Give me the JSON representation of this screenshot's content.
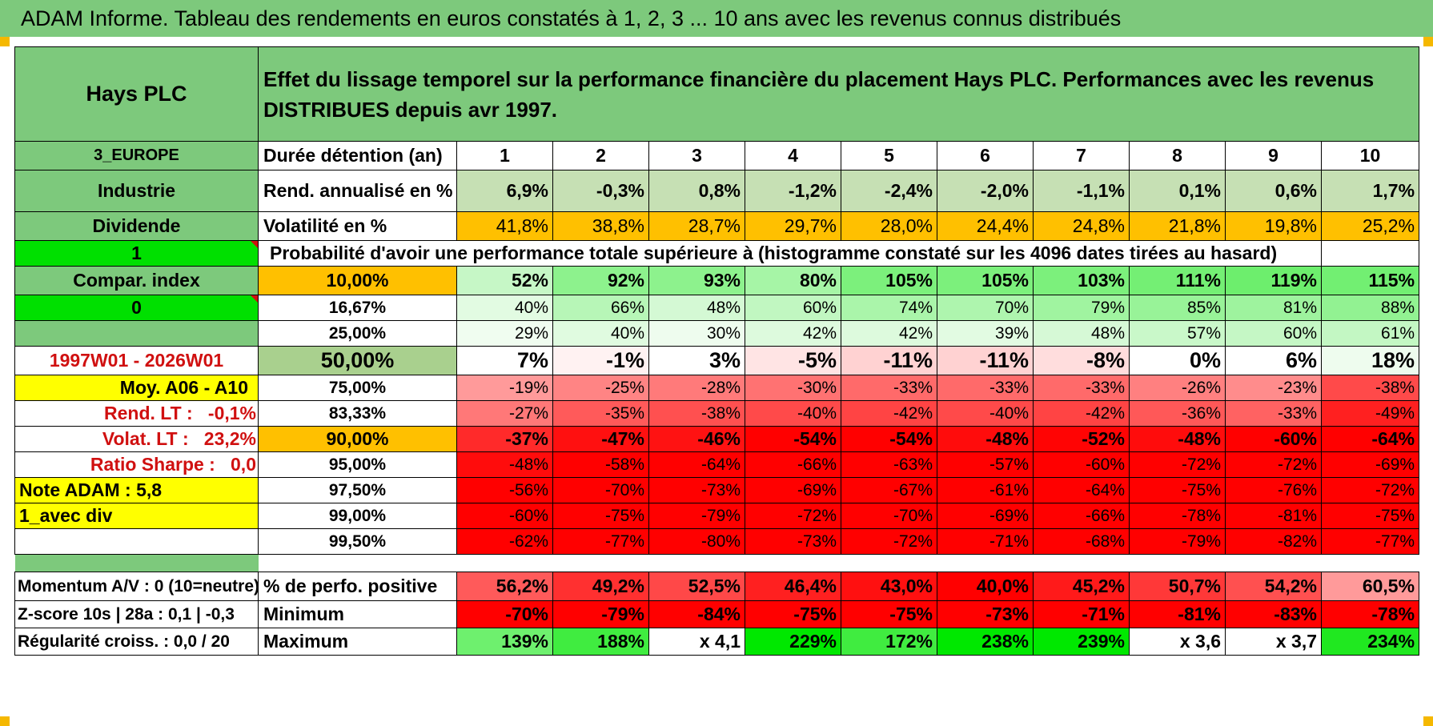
{
  "title": "ADAM Informe. Tableau des rendements en euros constatés à 1, 2, 3 ... 10 ans avec les revenus connus distribués",
  "colors": {
    "header_green": "#7dc97c",
    "highlight_yellow": "#ffff00",
    "bright_green": "#00e000",
    "orange": "#ffc000",
    "label_red": "#d01010"
  },
  "header": {
    "name": "Hays PLC",
    "description": "Effet du lissage temporel sur la performance financière du placement Hays PLC. Performances avec les revenus DISTRIBUES depuis avr 1997."
  },
  "left": {
    "region": "3_EUROPE",
    "sector": "Industrie",
    "revenue_type": "Dividende",
    "flag1": "1",
    "compar_index": "Compar. index",
    "flag0": "0",
    "period": "1997W01 - 2026W01",
    "moy": "Moy. A06 - A10",
    "rend_lt_label": "Rend. LT :",
    "rend_lt_value": "-0,1%",
    "volat_lt_label": "Volat. LT :",
    "volat_lt_value": "23,2%",
    "sharpe_label": "Ratio Sharpe :",
    "sharpe_value": "0,0",
    "note_adam": "Note ADAM : 5,8",
    "avec_div": "1_avec div"
  },
  "table": {
    "duration_label": "Durée détention (an)",
    "years": [
      "1",
      "2",
      "3",
      "4",
      "5",
      "6",
      "7",
      "8",
      "9",
      "10"
    ],
    "rend_label": "Rend. annualisé en %",
    "rend": [
      "6,9%",
      "-0,3%",
      "0,8%",
      "-1,2%",
      "-2,4%",
      "-2,0%",
      "-1,1%",
      "0,1%",
      "0,6%",
      "1,7%"
    ],
    "vol_label": "Volatilité en %",
    "vol": [
      "41,8%",
      "38,8%",
      "28,7%",
      "29,7%",
      "28,0%",
      "24,4%",
      "24,8%",
      "21,8%",
      "19,8%",
      "25,2%"
    ],
    "prob_text": "Probabilité d'avoir une performance totale supérieure à (histogramme constaté sur les 4096 dates tirées au hasard)",
    "percentile_rows": [
      {
        "p": "10,00%",
        "values": [
          "52%",
          "92%",
          "93%",
          "80%",
          "105%",
          "105%",
          "103%",
          "111%",
          "119%",
          "115%"
        ]
      },
      {
        "p": "16,67%",
        "values": [
          "40%",
          "66%",
          "48%",
          "60%",
          "74%",
          "70%",
          "79%",
          "85%",
          "81%",
          "88%"
        ]
      },
      {
        "p": "25,00%",
        "values": [
          "29%",
          "40%",
          "30%",
          "42%",
          "42%",
          "39%",
          "48%",
          "57%",
          "60%",
          "61%"
        ]
      },
      {
        "p": "50,00%",
        "values": [
          "7%",
          "-1%",
          "3%",
          "-5%",
          "-11%",
          "-11%",
          "-8%",
          "0%",
          "6%",
          "18%"
        ]
      },
      {
        "p": "75,00%",
        "values": [
          "-19%",
          "-25%",
          "-28%",
          "-30%",
          "-33%",
          "-33%",
          "-33%",
          "-26%",
          "-23%",
          "-38%"
        ]
      },
      {
        "p": "83,33%",
        "values": [
          "-27%",
          "-35%",
          "-38%",
          "-40%",
          "-42%",
          "-40%",
          "-42%",
          "-36%",
          "-33%",
          "-49%"
        ]
      },
      {
        "p": "90,00%",
        "values": [
          "-37%",
          "-47%",
          "-46%",
          "-54%",
          "-54%",
          "-48%",
          "-52%",
          "-48%",
          "-60%",
          "-64%"
        ]
      },
      {
        "p": "95,00%",
        "values": [
          "-48%",
          "-58%",
          "-64%",
          "-66%",
          "-63%",
          "-57%",
          "-60%",
          "-72%",
          "-72%",
          "-69%"
        ]
      },
      {
        "p": "97,50%",
        "values": [
          "-56%",
          "-70%",
          "-73%",
          "-69%",
          "-67%",
          "-61%",
          "-64%",
          "-75%",
          "-76%",
          "-72%"
        ]
      },
      {
        "p": "99,00%",
        "values": [
          "-60%",
          "-75%",
          "-79%",
          "-72%",
          "-70%",
          "-69%",
          "-66%",
          "-78%",
          "-81%",
          "-75%"
        ]
      },
      {
        "p": "99,50%",
        "values": [
          "-62%",
          "-77%",
          "-80%",
          "-73%",
          "-72%",
          "-71%",
          "-68%",
          "-79%",
          "-82%",
          "-77%"
        ]
      }
    ],
    "bottom": [
      {
        "left": "Momentum A/V : 0 (10=neutre)",
        "label": "% de perfo. positive",
        "values": [
          "56,2%",
          "49,2%",
          "52,5%",
          "46,4%",
          "43,0%",
          "40,0%",
          "45,2%",
          "50,7%",
          "54,2%",
          "60,5%"
        ]
      },
      {
        "left": "Z-score 10s | 28a : 0,1 | -0,3",
        "label": "Minimum",
        "values": [
          "-70%",
          "-79%",
          "-84%",
          "-75%",
          "-75%",
          "-73%",
          "-71%",
          "-81%",
          "-83%",
          "-78%"
        ]
      },
      {
        "left": "Régularité croiss. : 0,0 / 20",
        "label": "Maximum",
        "values": [
          "139%",
          "188%",
          "x 4,1",
          "229%",
          "172%",
          "238%",
          "239%",
          "x 3,6",
          "x 3,7",
          "234%"
        ]
      }
    ]
  }
}
